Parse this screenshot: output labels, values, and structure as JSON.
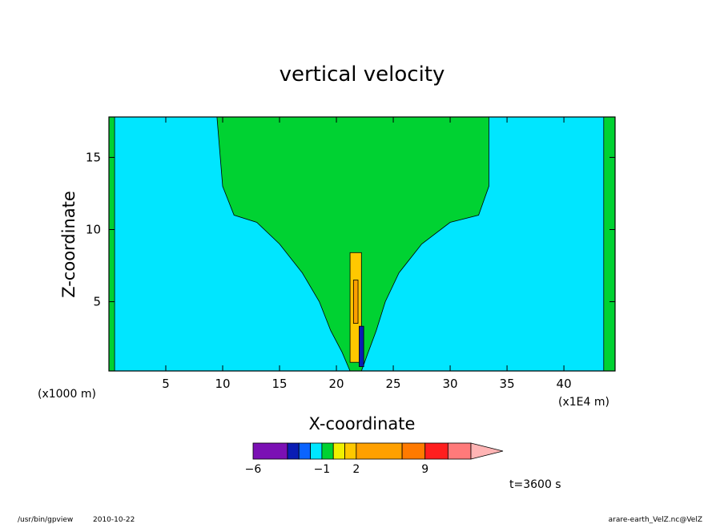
{
  "chart_data": {
    "type": "heatmap",
    "title": "vertical velocity",
    "xlabel": "X-coordinate",
    "ylabel": "Z-coordinate",
    "x_unit_left": "(x1000 m)",
    "x_unit_right": "(x1E4 m)",
    "xlim": [
      0,
      44.5
    ],
    "ylim": [
      0.2,
      17.8
    ],
    "x_ticks": [
      5,
      10,
      15,
      20,
      25,
      30,
      35,
      40
    ],
    "y_ticks": [
      5,
      10,
      15
    ],
    "time_label": "t=3600 s",
    "colorbar": {
      "tick_labels": [
        {
          "value": -6,
          "label": "−6"
        },
        {
          "value": -1,
          "label": "−1"
        },
        {
          "value": 2,
          "label": "2"
        },
        {
          "value": 9,
          "label": "9"
        }
      ],
      "levels": [
        {
          "color": "#7b10b4"
        },
        {
          "color": "#0a1cb4"
        },
        {
          "color": "#0a64ff"
        },
        {
          "color": "#00e6ff"
        },
        {
          "color": "#00d232"
        },
        {
          "color": "#f0f000"
        },
        {
          "color": "#ffc800"
        },
        {
          "color": "#ffa000"
        },
        {
          "color": "#ff7a00"
        },
        {
          "color": "#ff1e1e"
        },
        {
          "color": "#ff7a7a"
        },
        {
          "color": "#ffb4b4"
        }
      ]
    },
    "colors": {
      "background_field": "#00e6ff",
      "positive_field": "#00d232",
      "updraft_core": "#ffc800",
      "updraft_peak": "#ffa000",
      "downdraft": "#0a1cb4",
      "contour_line": "#000000"
    },
    "regions": [
      {
        "name": "left-boundary-band",
        "level": "positive",
        "x": [
          0,
          0.5
        ],
        "z": [
          0.2,
          17.8
        ]
      },
      {
        "name": "right-boundary-band",
        "level": "positive",
        "x": [
          43.5,
          44.5
        ],
        "z": [
          0.2,
          17.8
        ]
      },
      {
        "name": "upper-outflow-plume",
        "level": "positive",
        "x_left_edge": [
          9.5,
          10,
          11,
          13,
          15,
          17,
          18.5,
          19.5,
          20.5,
          21.2
        ],
        "x_right_edge": [
          33.4,
          33.4,
          32.5,
          30,
          27.5,
          25.5,
          24.3,
          23.5,
          22.8,
          22.2
        ],
        "z": [
          17.8,
          13,
          11,
          10.5,
          9,
          7,
          5,
          3,
          1.5,
          0.2
        ]
      },
      {
        "name": "updraft-core",
        "level": "updraft",
        "x": [
          21.2,
          22.2
        ],
        "z": [
          0.8,
          8.4
        ]
      },
      {
        "name": "updraft-peak",
        "level": "updraft_peak",
        "x": [
          21.5,
          21.9
        ],
        "z": [
          3.5,
          6.5
        ]
      },
      {
        "name": "downdraft-core",
        "level": "downdraft",
        "x": [
          22.0,
          22.4
        ],
        "z": [
          0.5,
          3.3
        ]
      }
    ]
  },
  "footer": {
    "program": "/usr/bin/gpview",
    "date": "2010-10-22",
    "source": "arare-earth_VelZ.nc@VelZ"
  }
}
